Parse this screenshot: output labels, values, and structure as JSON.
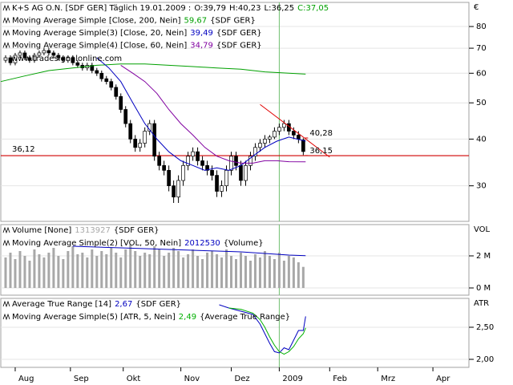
{
  "chart_data": [
    {
      "type": "candlestick",
      "title": "K+S AG O.N. [SDF GER]  Täglich 19.01.2009 :",
      "quote": [
        "O:39,79",
        "H:40,23",
        "L:36,25"
      ],
      "close_label": "C:37,05",
      "close_color": "#00a000",
      "watermark": "www.tradesignalonline.com",
      "axis_label": "€",
      "xlim": [
        0,
        195
      ],
      "ylim": [
        24.1,
        92.8
      ],
      "log_scale": true,
      "grid": true,
      "yticks": [
        30,
        40,
        50,
        60,
        70,
        80
      ],
      "x": [
        2,
        4,
        6,
        8,
        10,
        12,
        14,
        16,
        18,
        20,
        22,
        24,
        26,
        28,
        30,
        32,
        34,
        36,
        38,
        40,
        42,
        44,
        46,
        48,
        50,
        52,
        54,
        56,
        58,
        60,
        62,
        64,
        66,
        68,
        70,
        72,
        74,
        76,
        78,
        80,
        82,
        84,
        86,
        88,
        90,
        92,
        94,
        96,
        98,
        100,
        102,
        104,
        106,
        108,
        110,
        112,
        114,
        116,
        118,
        120,
        122,
        124,
        126
      ],
      "ohlc": [
        [
          65,
          67,
          64,
          66
        ],
        [
          66,
          67,
          63,
          64
        ],
        [
          64,
          68,
          63,
          67
        ],
        [
          67,
          69,
          66,
          68
        ],
        [
          68,
          69,
          65,
          66
        ],
        [
          66,
          67,
          64,
          65
        ],
        [
          65,
          68,
          64,
          67
        ],
        [
          67,
          69,
          66,
          68
        ],
        [
          68,
          70,
          67,
          69
        ],
        [
          69,
          70,
          67,
          68
        ],
        [
          68,
          69,
          66,
          67
        ],
        [
          67,
          68,
          65,
          66
        ],
        [
          66,
          67,
          64,
          65
        ],
        [
          65,
          67,
          64,
          66
        ],
        [
          66,
          67,
          63,
          64
        ],
        [
          64,
          65,
          62,
          63
        ],
        [
          63,
          64,
          61,
          62
        ],
        [
          62,
          64,
          61,
          63
        ],
        [
          63,
          64,
          60,
          61
        ],
        [
          61,
          62,
          59,
          60
        ],
        [
          60,
          61,
          57,
          58
        ],
        [
          58,
          59,
          56,
          57
        ],
        [
          57,
          58,
          54,
          55
        ],
        [
          55,
          56,
          51,
          52
        ],
        [
          52,
          53,
          47,
          48
        ],
        [
          48,
          49,
          43,
          44
        ],
        [
          44,
          45,
          39,
          40
        ],
        [
          40,
          41,
          37,
          38
        ],
        [
          38,
          40,
          37,
          39
        ],
        [
          39,
          43,
          38,
          42
        ],
        [
          42,
          45,
          41,
          44
        ],
        [
          44,
          45,
          35,
          36
        ],
        [
          36,
          37,
          33,
          34
        ],
        [
          34,
          35,
          32,
          33
        ],
        [
          33,
          34,
          29,
          30
        ],
        [
          30,
          31,
          27,
          28
        ],
        [
          28,
          32,
          27,
          31
        ],
        [
          31,
          35,
          30,
          34
        ],
        [
          34,
          37,
          33,
          36
        ],
        [
          36,
          38,
          35,
          37
        ],
        [
          37,
          38,
          34,
          35
        ],
        [
          35,
          36,
          33,
          34
        ],
        [
          34,
          35,
          32,
          33
        ],
        [
          33,
          34,
          31,
          32
        ],
        [
          32,
          33,
          28,
          29
        ],
        [
          29,
          31,
          28,
          30
        ],
        [
          30,
          34,
          29,
          33
        ],
        [
          33,
          37,
          32,
          36
        ],
        [
          36,
          37,
          33,
          34
        ],
        [
          34,
          35,
          30,
          31
        ],
        [
          31,
          35,
          30,
          34
        ],
        [
          34,
          37,
          33,
          36
        ],
        [
          36,
          39,
          35,
          38
        ],
        [
          38,
          40,
          37,
          39
        ],
        [
          39,
          41,
          38,
          40
        ],
        [
          40,
          41,
          39,
          40.5
        ],
        [
          40.5,
          43,
          40,
          42
        ],
        [
          42,
          44,
          41,
          43
        ],
        [
          43,
          45,
          42,
          44
        ],
        [
          44,
          45,
          41,
          42
        ],
        [
          42,
          43,
          40,
          41
        ],
        [
          41,
          42,
          39,
          40
        ],
        [
          39.79,
          40.23,
          36.25,
          37.05
        ]
      ],
      "up_color": "#ffffff",
      "down_color": "#000000",
      "series": [
        {
          "name": "Moving Average Simple [Close, 200, Nein]",
          "last_label": "59,67",
          "source": "{SDF GER}",
          "color": "#00a000",
          "x": [
            0,
            10,
            20,
            30,
            40,
            50,
            60,
            70,
            80,
            90,
            100,
            110,
            120,
            127
          ],
          "values": [
            57,
            59,
            61,
            62,
            63,
            63.5,
            63.5,
            63,
            62.5,
            62,
            61.5,
            60.5,
            60,
            59.67
          ]
        },
        {
          "name": "Moving Average Simple(3) [Close, 20, Nein]",
          "last_label": "39,49",
          "source": "{SDF GER}",
          "color": "#0000c0",
          "x": [
            40,
            45,
            50,
            55,
            60,
            65,
            70,
            75,
            80,
            85,
            90,
            95,
            100,
            105,
            110,
            115,
            120,
            127
          ],
          "values": [
            66,
            62,
            57,
            50,
            44,
            40,
            37,
            35,
            34,
            33,
            33.5,
            33,
            34,
            36,
            38,
            39.5,
            40.5,
            39.49
          ]
        },
        {
          "name": "Moving Average Simple(4) [Close, 60, Nein]",
          "last_label": "34,79",
          "source": "{SDF GER}",
          "color": "#8000a0",
          "x": [
            50,
            55,
            60,
            65,
            70,
            75,
            80,
            85,
            90,
            95,
            100,
            105,
            110,
            115,
            120,
            127
          ],
          "values": [
            63,
            60,
            57,
            53,
            48,
            44,
            41,
            38,
            36,
            35,
            34.5,
            34.5,
            35,
            35,
            34.8,
            34.79
          ]
        }
      ],
      "hlines": [
        {
          "value": 36.12,
          "label": "36,12",
          "color": "#d00000"
        }
      ],
      "trend_lines": [
        {
          "x": [
            108,
            137
          ],
          "values": [
            49.5,
            35.8
          ],
          "color": "#e00000"
        }
      ],
      "point_labels": [
        {
          "x": 128,
          "value": 40.28,
          "label": "40,28",
          "color": "#d00000"
        },
        {
          "x": 128,
          "value": 36.15,
          "label": "36,15",
          "color": "#d00000"
        }
      ]
    },
    {
      "type": "bar",
      "name": "Volume [None]",
      "last_label": "1313927",
      "source": "{SDF GER}",
      "color": "#a8a8a8",
      "axis_label": "VOL",
      "xlim": [
        0,
        195
      ],
      "ylim": [
        -450000,
        3950000
      ],
      "grid": true,
      "yticks": [
        {
          "value": 0,
          "label": "0 M"
        },
        {
          "value": 2000000,
          "label": "2 M"
        }
      ],
      "x": [
        2,
        4,
        6,
        8,
        10,
        12,
        14,
        16,
        18,
        20,
        22,
        24,
        26,
        28,
        30,
        32,
        34,
        36,
        38,
        40,
        42,
        44,
        46,
        48,
        50,
        52,
        54,
        56,
        58,
        60,
        62,
        64,
        66,
        68,
        70,
        72,
        74,
        76,
        78,
        80,
        82,
        84,
        86,
        88,
        90,
        92,
        94,
        96,
        98,
        100,
        102,
        104,
        106,
        108,
        110,
        112,
        114,
        116,
        118,
        120,
        122,
        124,
        126
      ],
      "values": [
        1900000,
        2200000,
        1800000,
        2300000,
        2000000,
        1700000,
        2400000,
        2100000,
        1900000,
        2200000,
        2500000,
        2000000,
        1800000,
        2300000,
        2600000,
        2100000,
        2200000,
        1900000,
        2400000,
        2000000,
        2300000,
        2100000,
        2500000,
        2200000,
        1900000,
        2400000,
        2700000,
        2300000,
        2000000,
        2200000,
        2100000,
        2600000,
        2400000,
        2000000,
        2200000,
        2500000,
        2300000,
        1900000,
        2100000,
        2400000,
        2000000,
        1800000,
        2200000,
        2300000,
        2100000,
        1900000,
        2400000,
        2000000,
        1800000,
        2200000,
        2000000,
        1700000,
        2100000,
        1900000,
        2300000,
        2000000,
        1800000,
        2200000,
        1700000,
        2000000,
        1900000,
        1600000,
        1313927
      ],
      "series": [
        {
          "name": "Moving Average Simple(2) [VOL, 50, Nein]",
          "last_label": "2012530",
          "source": "{Volume}",
          "color": "#0000c0",
          "x": [
            30,
            40,
            50,
            60,
            70,
            80,
            90,
            100,
            110,
            120,
            127
          ],
          "values": [
            2600000,
            2550000,
            2500000,
            2450000,
            2400000,
            2350000,
            2300000,
            2250000,
            2150000,
            2050000,
            2012530
          ]
        }
      ]
    },
    {
      "type": "line",
      "axis_label": "ATR",
      "xlim": [
        0,
        195
      ],
      "ylim": [
        1.875,
        2.95
      ],
      "grid": true,
      "yticks": [
        {
          "value": 2,
          "label": "2,00"
        },
        {
          "value": 2.5,
          "label": "2,50"
        }
      ],
      "xticks": [
        {
          "value": 6,
          "label": "Aug"
        },
        {
          "value": 29,
          "label": "Sep"
        },
        {
          "value": 51,
          "label": "Okt"
        },
        {
          "value": 75,
          "label": "Nov"
        },
        {
          "value": 96,
          "label": "Dez"
        },
        {
          "value": 116,
          "label": "2009",
          "highlight": true
        },
        {
          "value": 137,
          "label": "Feb"
        },
        {
          "value": 157,
          "label": "Mrz"
        },
        {
          "value": 180,
          "label": "Apr"
        }
      ],
      "highlight_color": "#70c070",
      "series": [
        {
          "name": "Average True Range [14]",
          "last_label": "2,67",
          "source": "{SDF GER}",
          "color": "#0000c0",
          "x": [
            91,
            95,
            100,
            105,
            108,
            110,
            112,
            114,
            116,
            118,
            120,
            122,
            124,
            126,
            127
          ],
          "values": [
            2.85,
            2.8,
            2.75,
            2.7,
            2.55,
            2.4,
            2.25,
            2.12,
            2.1,
            2.18,
            2.15,
            2.3,
            2.45,
            2.45,
            2.67
          ]
        },
        {
          "name": "Moving Average Simple(5) [ATR, 5, Nein]",
          "last_label": "2,49",
          "source": "{Average True Range}",
          "color": "#00b000",
          "x": [
            95,
            100,
            105,
            108,
            110,
            112,
            114,
            116,
            118,
            120,
            122,
            124,
            126,
            127
          ],
          "values": [
            2.8,
            2.78,
            2.72,
            2.62,
            2.5,
            2.35,
            2.22,
            2.12,
            2.08,
            2.12,
            2.2,
            2.32,
            2.4,
            2.49
          ]
        }
      ]
    }
  ]
}
